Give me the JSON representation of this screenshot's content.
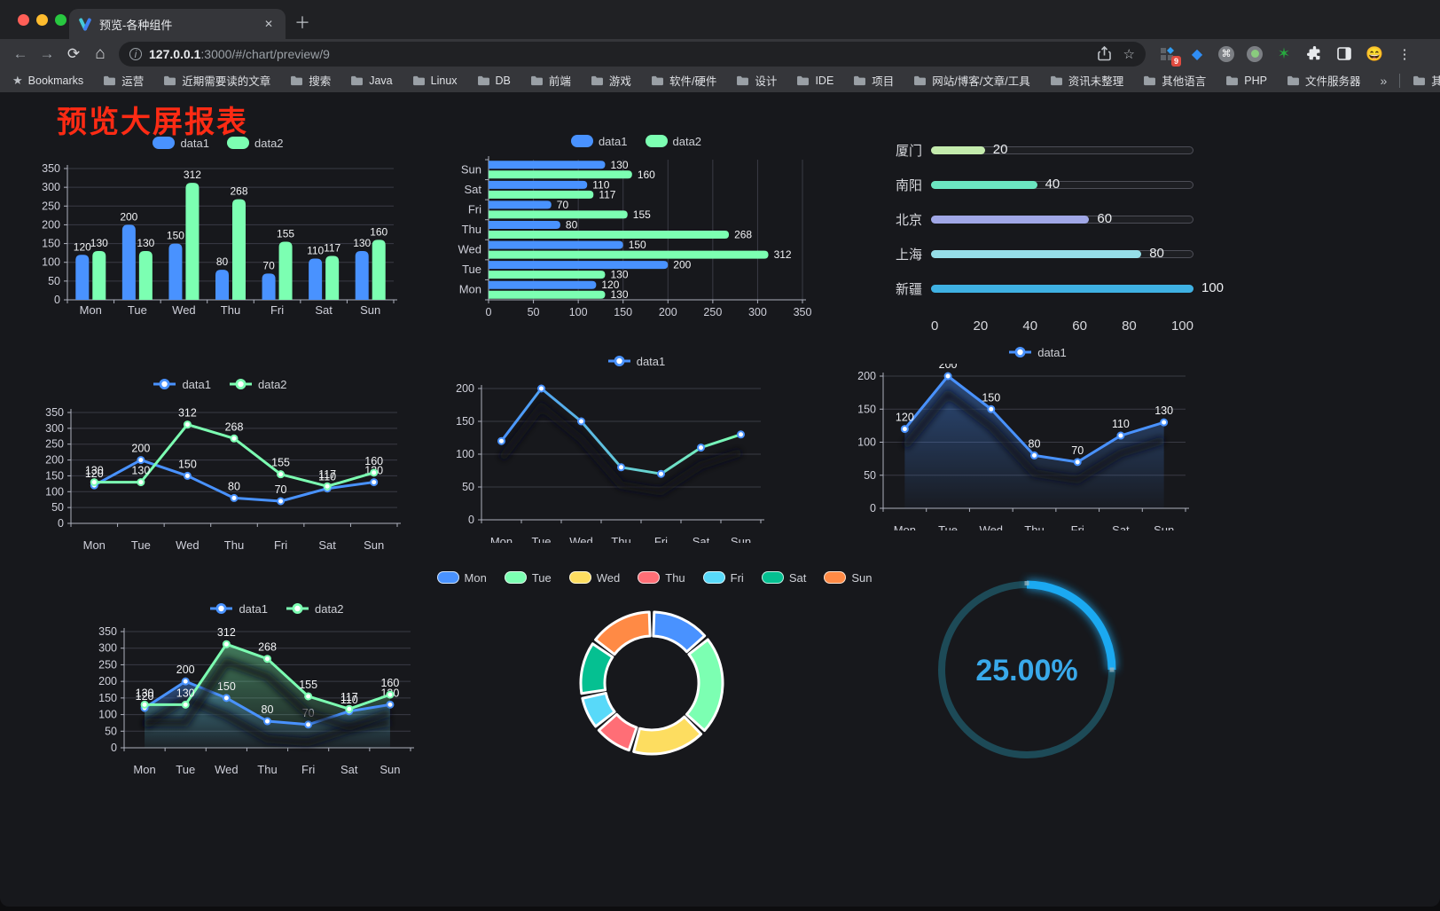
{
  "browser": {
    "traffic_lights": [
      "#ff5f57",
      "#febc2e",
      "#28c840"
    ],
    "tab_title": "预览-各种组件",
    "icons": {
      "close": "✕",
      "new_tab": "＋",
      "back": "←",
      "forward": "→",
      "reload": "⟳",
      "home": "⌂",
      "info": "i",
      "star": "☆",
      "menu": "⋮",
      "cmd": "⌘",
      "gem": "◆",
      "green_star": "✶",
      "emoji": "😄",
      "bookmarks_star": "★"
    },
    "url_host": "127.0.0.1",
    "url_rest": ":3000/#/chart/preview/9",
    "extensions_badge": "9",
    "bookmarks_label": "Bookmarks",
    "bookmarks": [
      "运营",
      "近期需要读的文章",
      "搜索",
      "Java",
      "Linux",
      "DB",
      "前端",
      "游戏",
      "软件/硬件",
      "设计",
      "IDE",
      "项目",
      "网站/博客/文章/工具",
      "资讯未整理",
      "其他语言",
      "PHP",
      "文件服务器"
    ],
    "bookmarks_overflow": "»",
    "other_bookmarks": "其他书签"
  },
  "page": {
    "title": "预览大屏报表",
    "title_color": "#fd2b14",
    "bg": "#17181c"
  },
  "theme": {
    "axis": "#aeb1bd",
    "grid": "#3a3b45",
    "tick_label": "#cfd0da",
    "data_label": "#f2f3f5",
    "legend_text": "#ced0d6"
  },
  "chart_data": [
    {
      "id": "bar",
      "type": "bar",
      "title": "",
      "categories": [
        "Mon",
        "Tue",
        "Wed",
        "Thu",
        "Fri",
        "Sat",
        "Sun"
      ],
      "series": [
        {
          "name": "data1",
          "color": "#4992ff",
          "values": [
            120,
            200,
            150,
            80,
            70,
            110,
            130
          ]
        },
        {
          "name": "data2",
          "color": "#7cffb2",
          "values": [
            130,
            130,
            312,
            268,
            155,
            117,
            160
          ]
        }
      ],
      "ylim": [
        0,
        350
      ],
      "ystep": 50,
      "grid": true,
      "legend_position": "top"
    },
    {
      "id": "hbar",
      "type": "hbar",
      "title": "",
      "categories": [
        "Mon",
        "Tue",
        "Wed",
        "Thu",
        "Fri",
        "Sat",
        "Sun"
      ],
      "series": [
        {
          "name": "data1",
          "color": "#4992ff",
          "values": [
            120,
            200,
            150,
            80,
            70,
            110,
            130
          ]
        },
        {
          "name": "data2",
          "color": "#7cffb2",
          "values": [
            130,
            130,
            312,
            268,
            155,
            117,
            160
          ]
        }
      ],
      "xlim": [
        0,
        350
      ],
      "xstep": 50,
      "grid": true,
      "legend_position": "top"
    },
    {
      "id": "capsule",
      "type": "capsule",
      "title": "",
      "rows": [
        {
          "label": "厦门",
          "value": 20,
          "color": "#c4ebad"
        },
        {
          "label": "南阳",
          "value": 40,
          "color": "#6be6c1"
        },
        {
          "label": "北京",
          "value": 60,
          "color": "#a0a7e6"
        },
        {
          "label": "上海",
          "value": 80,
          "color": "#96dee8"
        },
        {
          "label": "新疆",
          "value": 100,
          "color": "#3fb1e3"
        }
      ],
      "max": 100,
      "xticks": [
        0,
        20,
        40,
        60,
        80,
        100
      ]
    },
    {
      "id": "line2",
      "type": "line",
      "title": "",
      "categories": [
        "Mon",
        "Tue",
        "Wed",
        "Thu",
        "Fri",
        "Sat",
        "Sun"
      ],
      "series": [
        {
          "name": "data1",
          "color": "#4992ff",
          "values": [
            120,
            200,
            150,
            80,
            70,
            110,
            130
          ]
        },
        {
          "name": "data2",
          "color": "#7cffb2",
          "values": [
            130,
            130,
            312,
            268,
            155,
            117,
            160
          ]
        }
      ],
      "ylim": [
        0,
        350
      ],
      "ystep": 50,
      "show_labels": true,
      "grid": true,
      "legend_position": "top"
    },
    {
      "id": "gline",
      "type": "line",
      "title": "",
      "categories": [
        "Mon",
        "Tue",
        "Wed",
        "Thu",
        "Fri",
        "Sat",
        "Sun"
      ],
      "series": [
        {
          "name": "data1",
          "color": "#4992ff",
          "gradient": [
            "#4992ff",
            "#7cffb2"
          ],
          "values": [
            120,
            200,
            150,
            80,
            70,
            110,
            130
          ]
        }
      ],
      "ylim": [
        0,
        200
      ],
      "ystep": 50,
      "show_labels": false,
      "shadow": true,
      "grid": true,
      "legend_position": "top"
    },
    {
      "id": "aline",
      "type": "line",
      "title": "",
      "categories": [
        "Mon",
        "Tue",
        "Wed",
        "Thu",
        "Fri",
        "Sat",
        "Sun"
      ],
      "series": [
        {
          "name": "data1",
          "color": "#4992ff",
          "area": true,
          "values": [
            120,
            200,
            150,
            80,
            70,
            110,
            130
          ]
        }
      ],
      "ylim": [
        0,
        200
      ],
      "ystep": 50,
      "show_labels": true,
      "shadow": true,
      "grid": true,
      "legend_position": "top"
    },
    {
      "id": "aline2",
      "type": "line",
      "title": "",
      "categories": [
        "Mon",
        "Tue",
        "Wed",
        "Thu",
        "Fri",
        "Sat",
        "Sun"
      ],
      "series": [
        {
          "name": "data1",
          "color": "#4992ff",
          "area": true,
          "values": [
            120,
            200,
            150,
            80,
            70,
            110,
            130
          ]
        },
        {
          "name": "data2",
          "color": "#7cffb2",
          "area": true,
          "values": [
            130,
            130,
            312,
            268,
            155,
            117,
            160
          ]
        }
      ],
      "ylim": [
        0,
        350
      ],
      "ystep": 50,
      "show_labels": true,
      "shadow": true,
      "grid": true,
      "legend_position": "top"
    },
    {
      "id": "donut",
      "type": "pie",
      "title": "",
      "slices": [
        {
          "label": "Mon",
          "value": 120,
          "color": "#4992ff"
        },
        {
          "label": "Tue",
          "value": 200,
          "color": "#7cffb2"
        },
        {
          "label": "Wed",
          "value": 150,
          "color": "#fddd60"
        },
        {
          "label": "Thu",
          "value": 80,
          "color": "#ff6e76"
        },
        {
          "label": "Fri",
          "value": 70,
          "color": "#58d9f9"
        },
        {
          "label": "Sat",
          "value": 110,
          "color": "#05c091"
        },
        {
          "label": "Sun",
          "value": 130,
          "color": "#ff8a45"
        }
      ],
      "inner_radius": 53,
      "outer_radius": 80,
      "legend_position": "top"
    },
    {
      "id": "gauge",
      "type": "gauge",
      "title": "",
      "value": 25,
      "label": "25.00%",
      "color": "#1ba9f1",
      "track": "#1d4a57",
      "text_color": "#39a9ea"
    }
  ]
}
